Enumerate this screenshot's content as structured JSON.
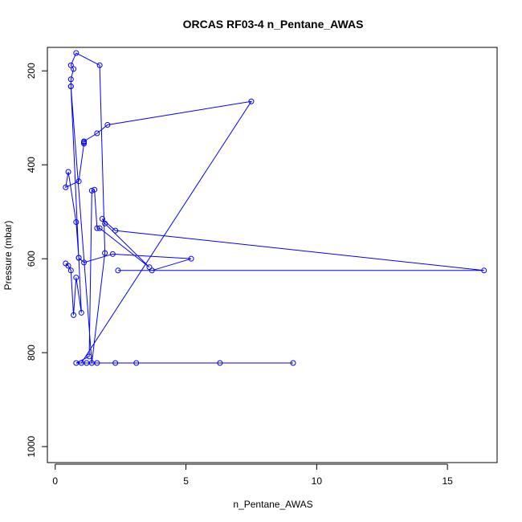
{
  "chart_data": {
    "type": "scatter",
    "title": "ORCAS RF03-4 n_Pentane_AWAS",
    "xlabel": "n_Pentane_AWAS",
    "ylabel": "Pressure (mbar)",
    "xlim": [
      -0.3,
      16.9
    ],
    "ylim": [
      1034,
      150
    ],
    "y_reversed": true,
    "x_ticks": [
      0,
      5,
      10,
      15
    ],
    "y_ticks": [
      200,
      400,
      600,
      800,
      1000
    ],
    "grid": false,
    "series": [
      {
        "color": "#0000ff",
        "marker": "open-circle",
        "connected": true,
        "points": [
          [
            0.4,
            610
          ],
          [
            0.5,
            615
          ],
          [
            0.6,
            625
          ],
          [
            0.7,
            720
          ],
          [
            0.8,
            640
          ],
          [
            1.0,
            715
          ],
          [
            0.9,
            598
          ],
          [
            1.1,
            608
          ],
          [
            2.2,
            590
          ],
          [
            5.2,
            600
          ],
          [
            3.7,
            625
          ],
          [
            2.4,
            625
          ],
          [
            16.4,
            625
          ],
          [
            2.3,
            540
          ],
          [
            1.8,
            515
          ],
          [
            1.9,
            525
          ],
          [
            3.6,
            618
          ],
          [
            1.7,
            535
          ],
          [
            1.6,
            535
          ],
          [
            1.5,
            453
          ],
          [
            1.4,
            455
          ],
          [
            1.3,
            808
          ],
          [
            0.8,
            822
          ],
          [
            1.2,
            822
          ],
          [
            9.1,
            822
          ],
          [
            6.3,
            822
          ],
          [
            3.1,
            822
          ],
          [
            2.3,
            822
          ],
          [
            1.6,
            822
          ],
          [
            1.0,
            822
          ],
          [
            7.5,
            265
          ],
          [
            2.0,
            315
          ],
          [
            1.6,
            333
          ],
          [
            1.1,
            350
          ],
          [
            1.1,
            352
          ],
          [
            1.1,
            355
          ],
          [
            0.9,
            435
          ],
          [
            0.4,
            448
          ],
          [
            0.5,
            415
          ],
          [
            0.8,
            522
          ],
          [
            0.9,
            598
          ],
          [
            0.6,
            233
          ],
          [
            0.6,
            218
          ],
          [
            0.7,
            196
          ],
          [
            0.6,
            188
          ],
          [
            0.8,
            162
          ],
          [
            1.7,
            188
          ],
          [
            1.9,
            588
          ],
          [
            1.4,
            822
          ],
          [
            0.6,
            233
          ]
        ]
      }
    ]
  }
}
